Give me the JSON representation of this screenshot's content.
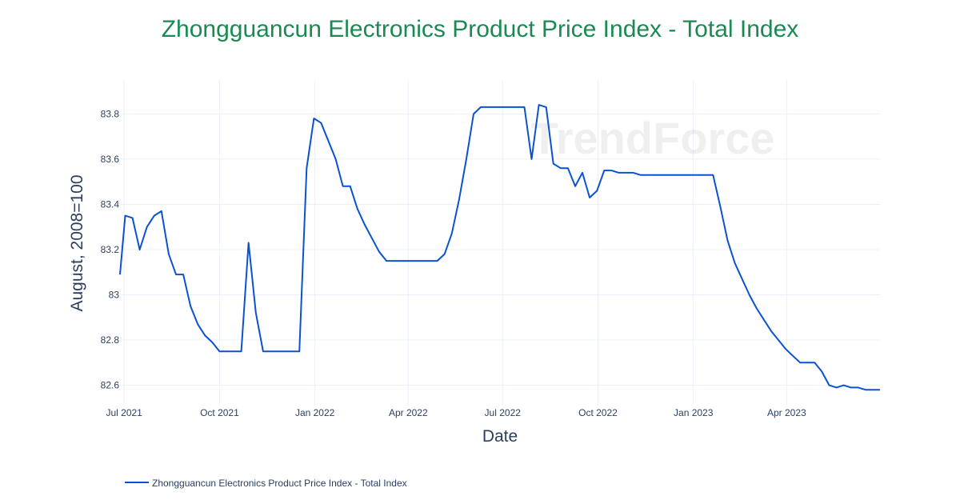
{
  "chart_data": {
    "type": "line",
    "title": "Zhongguancun Electronics Product Price Index - Total Index",
    "xlabel": "Date",
    "ylabel": "August, 2008=100",
    "x_tick_labels": [
      "Jul 2021",
      "Oct 2021",
      "Jan 2022",
      "Apr 2022",
      "Jul 2022",
      "Oct 2022",
      "Jan 2023",
      "Apr 2023"
    ],
    "y_ticks": [
      82.6,
      82.8,
      83,
      83.2,
      83.4,
      83.6,
      83.8
    ],
    "y_tick_labels": [
      "82.6",
      "82.8",
      "83",
      "83.2",
      "83.4",
      "83.6",
      "83.8"
    ],
    "xlim": [
      "2021-06-27",
      "2023-06-30"
    ],
    "ylim": [
      82.51,
      83.95
    ],
    "grid": true,
    "legend_position": "bottom-left",
    "watermark": "TrendForce",
    "series": [
      {
        "name": "Zhongguancun Electronics Product Price Index - Total Index",
        "color": "#0b52d1",
        "points": [
          [
            "2021-06-27",
            83.09
          ],
          [
            "2021-07-02",
            83.35
          ],
          [
            "2021-07-09",
            83.34
          ],
          [
            "2021-07-16",
            83.2
          ],
          [
            "2021-07-23",
            83.3
          ],
          [
            "2021-07-30",
            83.35
          ],
          [
            "2021-08-06",
            83.37
          ],
          [
            "2021-08-13",
            83.18
          ],
          [
            "2021-08-20",
            83.09
          ],
          [
            "2021-08-27",
            83.09
          ],
          [
            "2021-09-03",
            82.95
          ],
          [
            "2021-09-10",
            82.87
          ],
          [
            "2021-09-17",
            82.82
          ],
          [
            "2021-09-24",
            82.79
          ],
          [
            "2021-10-01",
            82.75
          ],
          [
            "2021-10-08",
            82.75
          ],
          [
            "2021-10-15",
            82.75
          ],
          [
            "2021-10-22",
            82.75
          ],
          [
            "2021-10-29",
            83.23
          ],
          [
            "2021-11-05",
            82.92
          ],
          [
            "2021-11-12",
            82.75
          ],
          [
            "2021-11-19",
            82.75
          ],
          [
            "2021-11-26",
            82.75
          ],
          [
            "2021-12-03",
            82.75
          ],
          [
            "2021-12-10",
            82.75
          ],
          [
            "2021-12-17",
            82.75
          ],
          [
            "2021-12-24",
            83.56
          ],
          [
            "2021-12-31",
            83.78
          ],
          [
            "2022-01-07",
            83.76
          ],
          [
            "2022-01-14",
            83.68
          ],
          [
            "2022-01-21",
            83.6
          ],
          [
            "2022-01-28",
            83.48
          ],
          [
            "2022-02-04",
            83.48
          ],
          [
            "2022-02-11",
            83.38
          ],
          [
            "2022-02-18",
            83.31
          ],
          [
            "2022-02-25",
            83.25
          ],
          [
            "2022-03-04",
            83.19
          ],
          [
            "2022-03-11",
            83.15
          ],
          [
            "2022-03-18",
            83.15
          ],
          [
            "2022-03-25",
            83.15
          ],
          [
            "2022-04-01",
            83.15
          ],
          [
            "2022-04-08",
            83.15
          ],
          [
            "2022-04-15",
            83.15
          ],
          [
            "2022-04-22",
            83.15
          ],
          [
            "2022-04-29",
            83.15
          ],
          [
            "2022-05-06",
            83.18
          ],
          [
            "2022-05-13",
            83.27
          ],
          [
            "2022-05-20",
            83.42
          ],
          [
            "2022-05-27",
            83.6
          ],
          [
            "2022-06-03",
            83.8
          ],
          [
            "2022-06-10",
            83.83
          ],
          [
            "2022-06-17",
            83.83
          ],
          [
            "2022-06-24",
            83.83
          ],
          [
            "2022-07-01",
            83.83
          ],
          [
            "2022-07-08",
            83.83
          ],
          [
            "2022-07-15",
            83.83
          ],
          [
            "2022-07-22",
            83.83
          ],
          [
            "2022-07-29",
            83.6
          ],
          [
            "2022-08-05",
            83.84
          ],
          [
            "2022-08-12",
            83.83
          ],
          [
            "2022-08-19",
            83.58
          ],
          [
            "2022-08-26",
            83.56
          ],
          [
            "2022-09-02",
            83.56
          ],
          [
            "2022-09-09",
            83.48
          ],
          [
            "2022-09-16",
            83.54
          ],
          [
            "2022-09-23",
            83.43
          ],
          [
            "2022-09-30",
            83.46
          ],
          [
            "2022-10-07",
            83.55
          ],
          [
            "2022-10-14",
            83.55
          ],
          [
            "2022-10-21",
            83.54
          ],
          [
            "2022-10-28",
            83.54
          ],
          [
            "2022-11-04",
            83.54
          ],
          [
            "2022-11-11",
            83.53
          ],
          [
            "2022-11-18",
            83.53
          ],
          [
            "2022-11-25",
            83.53
          ],
          [
            "2022-12-02",
            83.53
          ],
          [
            "2022-12-09",
            83.53
          ],
          [
            "2022-12-16",
            83.53
          ],
          [
            "2022-12-23",
            83.53
          ],
          [
            "2022-12-30",
            83.53
          ],
          [
            "2023-01-06",
            83.53
          ],
          [
            "2023-01-13",
            83.53
          ],
          [
            "2023-01-20",
            83.53
          ],
          [
            "2023-01-27",
            83.39
          ],
          [
            "2023-02-03",
            83.24
          ],
          [
            "2023-02-10",
            83.14
          ],
          [
            "2023-02-17",
            83.07
          ],
          [
            "2023-02-24",
            83.0
          ],
          [
            "2023-03-03",
            82.94
          ],
          [
            "2023-03-10",
            82.89
          ],
          [
            "2023-03-17",
            82.84
          ],
          [
            "2023-03-24",
            82.8
          ],
          [
            "2023-03-31",
            82.76
          ],
          [
            "2023-04-07",
            82.73
          ],
          [
            "2023-04-14",
            82.7
          ],
          [
            "2023-04-21",
            82.7
          ],
          [
            "2023-04-28",
            82.7
          ],
          [
            "2023-05-05",
            82.66
          ],
          [
            "2023-05-12",
            82.6
          ],
          [
            "2023-05-19",
            82.59
          ],
          [
            "2023-05-26",
            82.6
          ],
          [
            "2023-06-02",
            82.59
          ],
          [
            "2023-06-09",
            82.59
          ],
          [
            "2023-06-16",
            82.58
          ],
          [
            "2023-06-23",
            82.58
          ],
          [
            "2023-06-30",
            82.58
          ]
        ]
      }
    ]
  }
}
